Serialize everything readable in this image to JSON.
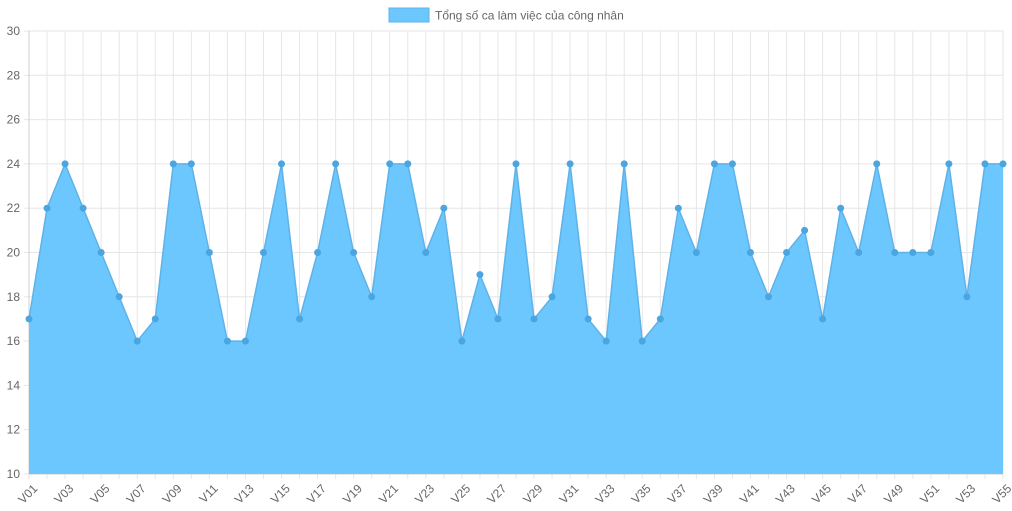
{
  "chart_data": {
    "type": "area",
    "legend": {
      "label": "Tổng số ca làm việc của công nhân",
      "placement": "top-center"
    },
    "colors": {
      "fill": "#6cc7ff",
      "line": "#5fb2e8",
      "point": "#4aa5e0",
      "grid": "#e6e6e6",
      "tick_text": "#666666"
    },
    "grid": true,
    "ylim": [
      10,
      30
    ],
    "y_ticks": [
      10,
      12,
      14,
      16,
      18,
      20,
      22,
      24,
      26,
      28,
      30
    ],
    "categories": [
      "V01",
      "V02",
      "V03",
      "V04",
      "V05",
      "V06",
      "V07",
      "V08",
      "V09",
      "V10",
      "V11",
      "V12",
      "V13",
      "V14",
      "V15",
      "V16",
      "V17",
      "V18",
      "V19",
      "V20",
      "V21",
      "V22",
      "V23",
      "V24",
      "V25",
      "V26",
      "V27",
      "V28",
      "V29",
      "V30",
      "V31",
      "V32",
      "V33",
      "V34",
      "V35",
      "V36",
      "V37",
      "V38",
      "V39",
      "V40",
      "V41",
      "V42",
      "V43",
      "V44",
      "V45",
      "V46",
      "V47",
      "V48",
      "V49",
      "V50",
      "V51",
      "V52",
      "V53",
      "V54",
      "V55"
    ],
    "x_tick_labels": [
      "V01",
      "V03",
      "V05",
      "V07",
      "V09",
      "V11",
      "V13",
      "V15",
      "V17",
      "V19",
      "V21",
      "V23",
      "V25",
      "V27",
      "V29",
      "V31",
      "V33",
      "V35",
      "V37",
      "V39",
      "V41",
      "V43",
      "V45",
      "V47",
      "V49",
      "V51",
      "V53",
      "V55"
    ],
    "series": [
      {
        "name": "Tổng số ca làm việc của công nhân",
        "values": [
          17,
          22,
          24,
          22,
          20,
          18,
          16,
          17,
          24,
          24,
          20,
          16,
          16,
          20,
          24,
          17,
          20,
          24,
          20,
          18,
          24,
          24,
          20,
          22,
          16,
          19,
          17,
          24,
          17,
          18,
          24,
          17,
          16,
          24,
          16,
          17,
          22,
          20,
          24,
          24,
          20,
          18,
          20,
          21,
          17,
          22,
          20,
          24,
          20,
          20,
          20,
          24,
          18,
          24,
          24
        ]
      }
    ]
  }
}
